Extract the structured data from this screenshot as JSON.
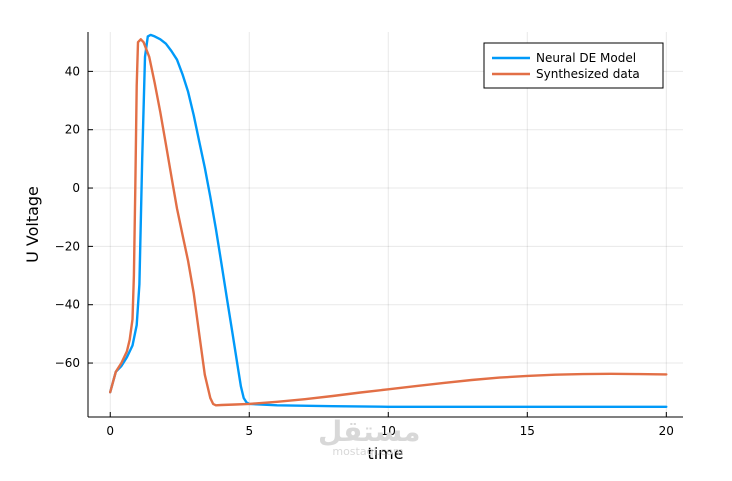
{
  "chart_data": {
    "type": "line",
    "title": "",
    "xlabel": "time",
    "ylabel": "U Voltage",
    "xlim": [
      -0.8,
      20.6
    ],
    "ylim": [
      -78.5,
      53.5
    ],
    "xticks": [
      0,
      5,
      10,
      15,
      20
    ],
    "yticks": [
      -60,
      -40,
      -20,
      0,
      20,
      40
    ],
    "xtick_labels": [
      "0",
      "5",
      "10",
      "15",
      "20"
    ],
    "ytick_labels": [
      "−60",
      "−40",
      "−20",
      "0",
      "20",
      "40"
    ],
    "grid": true,
    "legend_position": "top-right",
    "series": [
      {
        "name": "Neural DE Model",
        "color": "#009af9",
        "x": [
          0,
          0.2,
          0.4,
          0.6,
          0.8,
          0.95,
          1.05,
          1.15,
          1.25,
          1.35,
          1.45,
          1.6,
          1.8,
          2.0,
          2.2,
          2.4,
          2.6,
          2.8,
          3.0,
          3.2,
          3.4,
          3.6,
          3.8,
          4.0,
          4.2,
          4.4,
          4.6,
          4.7,
          4.8,
          4.9,
          5.0,
          6,
          8,
          10,
          12,
          14,
          16,
          18,
          20
        ],
        "y": [
          -70,
          -63,
          -61,
          -58,
          -54,
          -47,
          -33,
          10,
          45,
          52,
          52.5,
          52,
          51,
          49.5,
          47,
          44,
          39,
          33,
          25,
          16,
          7,
          -3,
          -14,
          -26,
          -38,
          -50,
          -62,
          -68,
          -72,
          -73.5,
          -74,
          -74.5,
          -74.8,
          -75,
          -75,
          -75,
          -75,
          -75,
          -75
        ]
      },
      {
        "name": "Synthesized data",
        "color": "#e26f46",
        "x": [
          0,
          0.2,
          0.4,
          0.6,
          0.7,
          0.8,
          0.85,
          0.9,
          0.95,
          1.0,
          1.1,
          1.2,
          1.4,
          1.6,
          1.8,
          2.0,
          2.2,
          2.4,
          2.6,
          2.8,
          3.0,
          3.2,
          3.4,
          3.6,
          3.7,
          3.8,
          4.0,
          4.5,
          5.0,
          6,
          7,
          8,
          9,
          10,
          11,
          12,
          13,
          14,
          15,
          16,
          17,
          18,
          19,
          20
        ],
        "y": [
          -70,
          -63,
          -60,
          -56,
          -52,
          -45,
          -30,
          0,
          35,
          50,
          51,
          50,
          45,
          36,
          26,
          15,
          4,
          -7,
          -16,
          -25,
          -36,
          -50,
          -64,
          -72,
          -74,
          -74.5,
          -74.4,
          -74.2,
          -74,
          -73.3,
          -72.4,
          -71.3,
          -70.1,
          -69,
          -67.9,
          -66.8,
          -65.8,
          -65,
          -64.4,
          -64,
          -63.8,
          -63.7,
          -63.8,
          -63.9
        ]
      }
    ]
  },
  "watermark": {
    "logo_text": "مستقل",
    "site_text": "mostaql.com"
  }
}
